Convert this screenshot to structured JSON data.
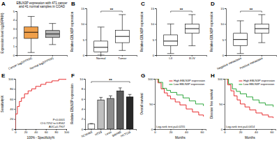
{
  "chart_data": [
    {
      "type": "box",
      "label": "A",
      "title": [
        "EBLN3P expression with 471 cancer",
        "and 41 normal samples in COAD"
      ],
      "ylabel": "Expression level log2(FPKM)",
      "categories": [
        "Cancer log2(FPKM)",
        "Normal log2(FPKM)"
      ],
      "colors": [
        "#f0a04b",
        "#b3b3b3"
      ],
      "min": [
        0.3,
        1.2
      ],
      "q1": [
        1.9,
        2.0
      ],
      "median": [
        2.6,
        2.4
      ],
      "q3": [
        3.2,
        2.8
      ],
      "max": [
        4.4,
        3.6
      ],
      "ylim": [
        0,
        5
      ],
      "yticks": [
        0,
        1,
        2,
        3,
        4,
        5
      ]
    },
    {
      "type": "box",
      "label": "B",
      "ylabel": "Relative EBLN3P expression",
      "categories": [
        "Normal",
        "Tumor"
      ],
      "colors": [
        "#ffffff",
        "#ffffff"
      ],
      "min": [
        0,
        1.5
      ],
      "q1": [
        1,
        4
      ],
      "median": [
        2.5,
        6
      ],
      "q3": [
        4.5,
        8
      ],
      "max": [
        9,
        13
      ],
      "ylim": [
        0,
        15
      ],
      "yticks": [
        0,
        5,
        10,
        15
      ],
      "annotations": [
        "**"
      ]
    },
    {
      "type": "box",
      "label": "C",
      "ylabel": "Relative EBLN3P expression",
      "categories": [
        "I-II",
        "III-IV"
      ],
      "colors": [
        "#ffffff",
        "#ffffff"
      ],
      "min": [
        0.5,
        3
      ],
      "q1": [
        3,
        7
      ],
      "median": [
        4.5,
        8.5
      ],
      "q3": [
        6.5,
        10
      ],
      "max": [
        10,
        13
      ],
      "ylim": [
        0,
        15
      ],
      "yticks": [
        0,
        5,
        10,
        15
      ],
      "annotations": [
        "**"
      ]
    },
    {
      "type": "box",
      "label": "D",
      "ylabel": "Relative EBLN3P expression",
      "categories": [
        "Negative metastasis",
        "Positive metastasis"
      ],
      "colors": [
        "#ffffff",
        "#ffffff"
      ],
      "min": [
        0.5,
        4
      ],
      "q1": [
        3,
        7
      ],
      "median": [
        5,
        8.5
      ],
      "q3": [
        7,
        10
      ],
      "max": [
        11,
        13
      ],
      "ylim": [
        0,
        15
      ],
      "yticks": [
        0,
        5,
        10,
        15
      ],
      "annotations": [
        "**"
      ]
    },
    {
      "type": "line",
      "label": "E",
      "line_style": "step",
      "xlabel": "100% - Specificity%",
      "ylabel": "Sensitivity%",
      "color": "#e41a1c",
      "x": [
        0,
        0,
        4,
        8,
        12,
        18,
        25,
        32,
        40,
        50,
        60,
        72,
        85,
        100
      ],
      "values": [
        0,
        30,
        45,
        55,
        62,
        70,
        76,
        80,
        85,
        89,
        93,
        96,
        99,
        100
      ],
      "xlim": [
        0,
        100
      ],
      "xticks": [
        0,
        20,
        40,
        60,
        80,
        100
      ],
      "ylim": [
        0,
        100
      ],
      "yticks": [
        0,
        20,
        40,
        60,
        80,
        100
      ],
      "annotations": [
        "P<0.0001",
        "CI:0.7252 to 0.8562",
        "AUC=0.7907"
      ]
    },
    {
      "type": "bar",
      "label": "F",
      "ylabel": "Relative EBLN3P expression",
      "categories": [
        "NCM460",
        "HT29",
        "LoVo",
        "SW480",
        "HCT116"
      ],
      "values": [
        1.0,
        5.8,
        6.1,
        7.6,
        6.4
      ],
      "errors": [
        0.1,
        0.5,
        0.5,
        0.6,
        0.5
      ],
      "colors": [
        "#ffffff",
        "#bfbfbf",
        "#8c8c8c",
        "#595959",
        "#262626"
      ],
      "ylim": [
        0,
        10
      ],
      "yticks": [
        0,
        2,
        4,
        6,
        8,
        10
      ],
      "annotations": [
        "**"
      ]
    },
    {
      "type": "line",
      "label": "G",
      "line_style": "step",
      "xlabel": "Months",
      "ylabel": "Overall survival",
      "legend": "upper right",
      "series": [
        {
          "name": "High EBLN3P expression",
          "color": "#e41a1c",
          "x": [
            0,
            4,
            8,
            12,
            16,
            20,
            26,
            32,
            40,
            48,
            56,
            62
          ],
          "values": [
            100,
            92,
            80,
            72,
            66,
            60,
            54,
            48,
            40,
            34,
            28,
            25
          ]
        },
        {
          "name": "Low EBLN3P expression",
          "color": "#1a9e2a",
          "x": [
            0,
            5,
            10,
            15,
            20,
            28,
            36,
            44,
            52,
            62
          ],
          "values": [
            100,
            93,
            81,
            77,
            73,
            68,
            62,
            56,
            50,
            46
          ]
        }
      ],
      "xlim": [
        0,
        65
      ],
      "xticks": [
        0,
        20,
        40,
        60
      ],
      "ylim": [
        0,
        100
      ],
      "yticks": [
        0,
        50,
        100
      ],
      "annotations": [
        "Log-rank test,p=0.0255"
      ]
    },
    {
      "type": "line",
      "label": "H",
      "line_style": "step",
      "xlabel": "Months",
      "ylabel": "Disease free survival",
      "legend": "upper right",
      "series": [
        {
          "name": "High EBLN3P expression",
          "color": "#e41a1c",
          "x": [
            0,
            4,
            8,
            12,
            16,
            20,
            26,
            32,
            40,
            48,
            56,
            62
          ],
          "values": [
            100,
            88,
            76,
            66,
            58,
            50,
            44,
            38,
            32,
            28,
            24,
            22
          ]
        },
        {
          "name": "Low EBLN3P expression",
          "color": "#1a9e2a",
          "x": [
            0,
            5,
            10,
            15,
            20,
            28,
            36,
            44,
            52,
            62
          ],
          "values": [
            100,
            90,
            80,
            75,
            70,
            64,
            58,
            52,
            48,
            44
          ]
        }
      ],
      "xlim": [
        0,
        65
      ],
      "xticks": [
        0,
        20,
        40,
        60
      ],
      "ylim": [
        0,
        100
      ],
      "yticks": [
        0,
        50,
        100
      ],
      "annotations": [
        "Log-rank test,p=0.0414"
      ]
    }
  ]
}
